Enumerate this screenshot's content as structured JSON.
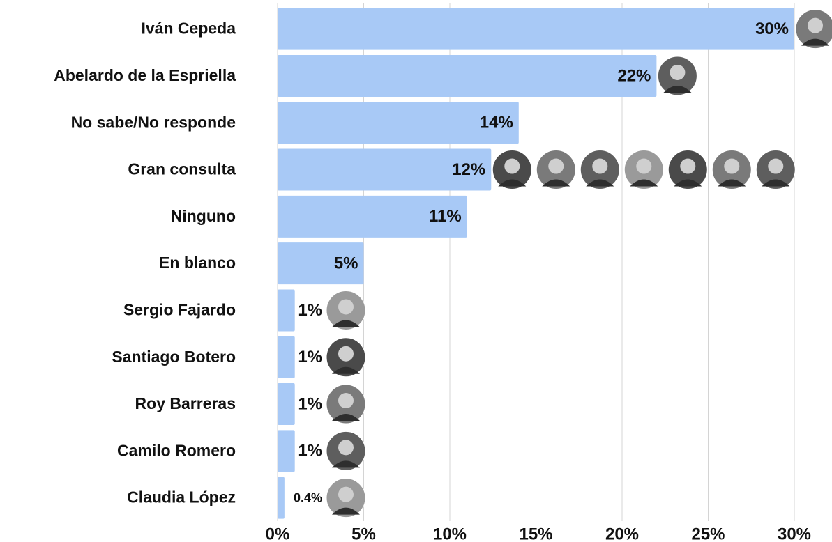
{
  "chart_data": {
    "type": "bar",
    "orientation": "horizontal",
    "categories": [
      "Iván Cepeda",
      "Abelardo de la Espriella",
      "No sabe/No responde",
      "Gran consulta",
      "Ninguno",
      "En blanco",
      "Sergio Fajardo",
      "Santiago Botero",
      "Roy Barreras",
      "Camilo Romero",
      "Claudia López"
    ],
    "values": [
      30,
      22,
      14,
      12.4,
      11,
      5,
      1,
      1,
      1,
      1,
      0.4
    ],
    "value_labels": [
      "30%",
      "22%",
      "14%",
      "12%",
      "11%",
      "5%",
      "1%",
      "1%",
      "1%",
      "1%",
      "0.4%"
    ],
    "color": "#a8c9f6",
    "xlim": [
      0,
      30
    ],
    "xticks": [
      {
        "value": 0,
        "label": "0%"
      },
      {
        "value": 5,
        "label": "5%"
      },
      {
        "value": 10,
        "label": "10%"
      },
      {
        "value": 15,
        "label": "15%"
      },
      {
        "value": 20,
        "label": "20%"
      },
      {
        "value": 25,
        "label": "25%"
      },
      {
        "value": 30,
        "label": "30%"
      }
    ],
    "grid": true
  }
}
